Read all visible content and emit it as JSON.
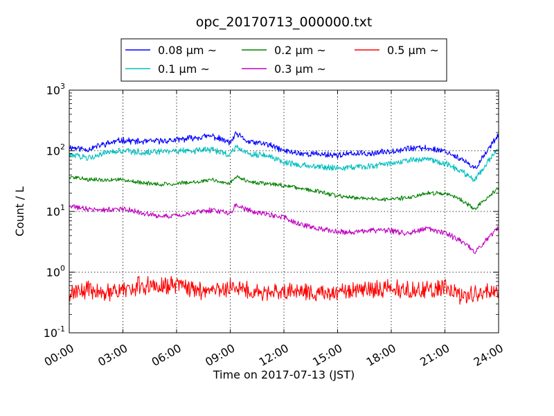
{
  "chart_data": {
    "type": "line",
    "title": "opc_20170713_000000.txt",
    "xlabel": "Time on 2017-07-13 (JST)",
    "ylabel": "Count / L",
    "yscale": "log",
    "xlim": [
      "00:00",
      "24:00"
    ],
    "ylim": [
      0.1,
      1000
    ],
    "x_ticks": [
      "00:00",
      "03:00",
      "06:00",
      "09:00",
      "12:00",
      "15:00",
      "18:00",
      "21:00",
      "24:00"
    ],
    "y_ticks": [
      {
        "base": "10",
        "exp": "-1",
        "value": 0.1
      },
      {
        "base": "10",
        "exp": "0",
        "value": 1
      },
      {
        "base": "10",
        "exp": "1",
        "value": 10
      },
      {
        "base": "10",
        "exp": "2",
        "value": 100
      },
      {
        "base": "10",
        "exp": "3",
        "value": 1000
      }
    ],
    "grid": true,
    "legend_position": "top, above plot",
    "series": [
      {
        "name": "0.08 μm ~",
        "color": "#0000ff",
        "x": [
          "00:00",
          "01:00",
          "02:00",
          "03:00",
          "04:00",
          "05:00",
          "06:00",
          "07:00",
          "08:00",
          "09:00",
          "09:20",
          "10:00",
          "11:00",
          "12:00",
          "13:00",
          "14:00",
          "15:00",
          "16:00",
          "17:00",
          "18:00",
          "19:00",
          "20:00",
          "21:00",
          "22:00",
          "22:40",
          "24:00"
        ],
        "values": [
          115,
          105,
          130,
          150,
          140,
          145,
          150,
          165,
          175,
          135,
          190,
          140,
          130,
          100,
          90,
          88,
          85,
          90,
          90,
          100,
          110,
          110,
          100,
          70,
          50,
          190
        ]
      },
      {
        "name": "0.1 μm ~",
        "color": "#00bfbf",
        "x": [
          "00:00",
          "01:00",
          "02:00",
          "03:00",
          "04:00",
          "05:00",
          "06:00",
          "07:00",
          "08:00",
          "09:00",
          "09:20",
          "10:00",
          "11:00",
          "12:00",
          "13:00",
          "14:00",
          "15:00",
          "16:00",
          "17:00",
          "18:00",
          "19:00",
          "20:00",
          "21:00",
          "22:00",
          "22:40",
          "24:00"
        ],
        "values": [
          85,
          78,
          90,
          100,
          95,
          95,
          100,
          100,
          105,
          85,
          120,
          90,
          85,
          65,
          58,
          55,
          52,
          55,
          55,
          62,
          70,
          72,
          62,
          45,
          33,
          115
        ]
      },
      {
        "name": "0.2 μm ~",
        "color": "#008000",
        "x": [
          "00:00",
          "01:00",
          "02:00",
          "03:00",
          "04:00",
          "05:00",
          "06:00",
          "07:00",
          "08:00",
          "09:00",
          "09:20",
          "10:00",
          "11:00",
          "12:00",
          "13:00",
          "14:00",
          "15:00",
          "16:00",
          "17:00",
          "18:00",
          "19:00",
          "20:00",
          "21:00",
          "22:00",
          "22:40",
          "24:00"
        ],
        "values": [
          37,
          34,
          33,
          34,
          30,
          28,
          29,
          31,
          33,
          29,
          38,
          31,
          29,
          27,
          24,
          21,
          18,
          17,
          16,
          16,
          17,
          20,
          20,
          15,
          11,
          25
        ]
      },
      {
        "name": "0.3 μm ~",
        "color": "#bf00bf",
        "x": [
          "00:00",
          "01:00",
          "02:00",
          "03:00",
          "04:00",
          "05:00",
          "06:00",
          "07:00",
          "08:00",
          "09:00",
          "09:20",
          "10:00",
          "11:00",
          "12:00",
          "13:00",
          "14:00",
          "15:00",
          "16:00",
          "17:00",
          "18:00",
          "19:00",
          "20:00",
          "21:00",
          "22:00",
          "22:40",
          "24:00"
        ],
        "values": [
          12,
          11,
          10.5,
          11,
          9.5,
          8.5,
          8.5,
          9.5,
          10.5,
          9.5,
          13,
          10.5,
          9,
          8,
          6,
          5.2,
          4.6,
          4.6,
          4.9,
          4.8,
          4.4,
          5.2,
          4.4,
          3.2,
          2.1,
          5.6
        ]
      },
      {
        "name": "0.5 μm ~",
        "color": "#ff0000",
        "x": [
          "00:00",
          "01:00",
          "02:00",
          "03:00",
          "04:00",
          "05:00",
          "06:00",
          "07:00",
          "08:00",
          "09:00",
          "10:00",
          "11:00",
          "12:00",
          "13:00",
          "14:00",
          "15:00",
          "16:00",
          "17:00",
          "18:00",
          "19:00",
          "20:00",
          "21:00",
          "22:00",
          "23:00",
          "24:00"
        ],
        "values": [
          0.45,
          0.5,
          0.45,
          0.5,
          0.6,
          0.6,
          0.6,
          0.5,
          0.5,
          0.55,
          0.5,
          0.45,
          0.5,
          0.5,
          0.45,
          0.45,
          0.5,
          0.5,
          0.55,
          0.5,
          0.5,
          0.55,
          0.4,
          0.45,
          0.5
        ]
      }
    ]
  }
}
